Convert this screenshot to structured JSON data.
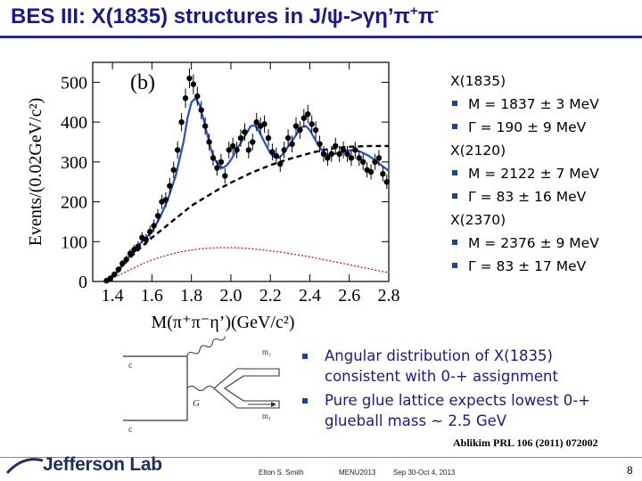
{
  "title": {
    "main": "BES III: X(1835) structures in J/ψ->γη’π",
    "sup_plus": "+",
    "pi_char": "π",
    "sup_minus": "-"
  },
  "results": [
    {
      "label": "X(1835)",
      "mass": "M = 1837 ± 3 MeV",
      "width": "Γ = 190 ± 9 MeV"
    },
    {
      "label": "X(2120)",
      "mass": "M = 2122 ± 7 MeV",
      "width": "Γ = 83 ± 16 MeV"
    },
    {
      "label": "X(2370)",
      "mass": "M = 2376 ± 9 MeV",
      "width": "Γ = 83 ± 17 MeV"
    }
  ],
  "notes": [
    "Angular distribution of X(1835) consistent with 0-+ assignment",
    "Pure glue lattice expects lowest 0-+ glueball mass ~ 2.5 GeV"
  ],
  "reference": "Ablikim PRL 106 (2011) 072002",
  "footer": {
    "logo": "Jefferson Lab",
    "author": "Elton S. Smith",
    "conference": "MENU2013",
    "dates": "Sep 30-Oct 4, 2013",
    "page": "8"
  },
  "diagram": {
    "labels": [
      "c",
      "c",
      "G",
      "m₁",
      "m₂"
    ]
  },
  "colors": {
    "title": "#1a1a8c",
    "fit": "#1f4fd8",
    "background_fit": "#000000",
    "phase_space": "#d01818",
    "bullet": "#1b3fa6"
  },
  "chart_data": {
    "type": "scatter",
    "panel_label": "(b)",
    "xlabel": "M(π⁺π⁻η’)(GeV/c²)",
    "ylabel": "Events/(0.02GeV/c²)",
    "xlim": [
      1.3,
      2.8
    ],
    "ylim": [
      0,
      550
    ],
    "x_ticks": [
      1.4,
      1.6,
      1.8,
      2.0,
      2.2,
      2.4,
      2.6,
      2.8
    ],
    "x_tick_labels": [
      "1.4",
      "1.6",
      "1.8",
      "2.0",
      "2.2",
      "2.4",
      "2.6",
      "2.8"
    ],
    "y_ticks": [
      0,
      100,
      200,
      300,
      400,
      500
    ],
    "y_tick_labels": [
      "0",
      "100",
      "200",
      "300",
      "400",
      "500"
    ],
    "series": [
      {
        "name": "Data",
        "style": "points",
        "x": [
          1.37,
          1.39,
          1.41,
          1.43,
          1.45,
          1.47,
          1.49,
          1.51,
          1.53,
          1.55,
          1.57,
          1.59,
          1.61,
          1.63,
          1.65,
          1.67,
          1.69,
          1.71,
          1.73,
          1.75,
          1.77,
          1.79,
          1.81,
          1.83,
          1.85,
          1.87,
          1.89,
          1.91,
          1.93,
          1.95,
          1.97,
          1.99,
          2.01,
          2.03,
          2.05,
          2.07,
          2.09,
          2.11,
          2.13,
          2.15,
          2.17,
          2.19,
          2.21,
          2.23,
          2.25,
          2.27,
          2.29,
          2.31,
          2.33,
          2.35,
          2.37,
          2.39,
          2.41,
          2.43,
          2.45,
          2.47,
          2.49,
          2.51,
          2.53,
          2.55,
          2.57,
          2.59,
          2.61,
          2.63,
          2.65,
          2.67,
          2.69,
          2.71,
          2.73,
          2.75,
          2.77,
          2.79
        ],
        "y": [
          2,
          8,
          18,
          30,
          45,
          55,
          70,
          80,
          88,
          110,
          105,
          125,
          140,
          165,
          200,
          205,
          240,
          280,
          330,
          400,
          460,
          510,
          495,
          465,
          430,
          390,
          350,
          310,
          285,
          300,
          265,
          330,
          340,
          330,
          360,
          375,
          330,
          350,
          400,
          390,
          395,
          360,
          325,
          315,
          295,
          330,
          360,
          345,
          390,
          380,
          410,
          420,
          395,
          380,
          345,
          320,
          310,
          320,
          340,
          320,
          330,
          320,
          310,
          330,
          310,
          300,
          280,
          275,
          300,
          310,
          270,
          250
        ],
        "err": [
          3,
          4,
          6,
          8,
          9,
          10,
          11,
          12,
          13,
          14,
          14,
          15,
          16,
          17,
          18,
          19,
          20,
          21,
          22,
          23,
          24,
          25,
          25,
          24,
          23,
          22,
          21,
          20,
          19,
          20,
          19,
          21,
          21,
          21,
          22,
          22,
          21,
          21,
          23,
          22,
          22,
          22,
          21,
          21,
          20,
          21,
          22,
          21,
          22,
          22,
          23,
          23,
          22,
          22,
          21,
          20,
          20,
          20,
          21,
          20,
          21,
          20,
          20,
          21,
          20,
          20,
          19,
          19,
          20,
          20,
          19,
          18
        ]
      },
      {
        "name": "Total fit",
        "style": "solid",
        "x": [
          1.36,
          1.4,
          1.44,
          1.48,
          1.52,
          1.56,
          1.6,
          1.64,
          1.68,
          1.72,
          1.76,
          1.78,
          1.8,
          1.82,
          1.84,
          1.86,
          1.88,
          1.9,
          1.92,
          1.94,
          1.96,
          1.98,
          2.0,
          2.02,
          2.04,
          2.06,
          2.08,
          2.1,
          2.12,
          2.14,
          2.16,
          2.18,
          2.2,
          2.22,
          2.24,
          2.26,
          2.28,
          2.3,
          2.32,
          2.34,
          2.36,
          2.38,
          2.4,
          2.42,
          2.44,
          2.46,
          2.48,
          2.5,
          2.54,
          2.58,
          2.62,
          2.66,
          2.7,
          2.74,
          2.78,
          2.8
        ],
        "y": [
          0,
          10,
          32,
          60,
          85,
          105,
          125,
          160,
          205,
          265,
          350,
          410,
          450,
          460,
          445,
          410,
          370,
          330,
          305,
          290,
          285,
          292,
          305,
          322,
          340,
          356,
          372,
          390,
          392,
          380,
          360,
          340,
          322,
          312,
          310,
          318,
          332,
          345,
          360,
          375,
          388,
          390,
          380,
          362,
          345,
          330,
          320,
          318,
          322,
          328,
          330,
          325,
          315,
          300,
          285,
          278
        ]
      },
      {
        "name": "Background",
        "style": "dashed",
        "x": [
          1.36,
          1.4,
          1.45,
          1.5,
          1.55,
          1.6,
          1.65,
          1.7,
          1.75,
          1.8,
          1.85,
          1.9,
          1.95,
          2.0,
          2.05,
          2.1,
          2.15,
          2.2,
          2.25,
          2.3,
          2.35,
          2.4,
          2.45,
          2.5,
          2.55,
          2.6,
          2.65,
          2.7,
          2.75,
          2.8
        ],
        "y": [
          0,
          15,
          40,
          65,
          88,
          110,
          130,
          150,
          170,
          190,
          205,
          220,
          235,
          248,
          260,
          272,
          282,
          292,
          300,
          308,
          315,
          322,
          328,
          333,
          336,
          338,
          339,
          340,
          340,
          340
        ]
      },
      {
        "name": "Phase space",
        "style": "dotted",
        "x": [
          1.36,
          1.4,
          1.45,
          1.5,
          1.55,
          1.6,
          1.65,
          1.7,
          1.75,
          1.8,
          1.85,
          1.9,
          1.95,
          2.0,
          2.05,
          2.1,
          2.15,
          2.2,
          2.25,
          2.3,
          2.35,
          2.4,
          2.45,
          2.5,
          2.55,
          2.6,
          2.65,
          2.7,
          2.75,
          2.8
        ],
        "y": [
          0,
          8,
          20,
          32,
          44,
          54,
          62,
          69,
          75,
          79,
          82,
          84,
          85,
          85,
          84,
          82,
          80,
          77,
          74,
          70,
          66,
          62,
          57,
          52,
          47,
          42,
          37,
          32,
          27,
          22
        ]
      }
    ]
  }
}
